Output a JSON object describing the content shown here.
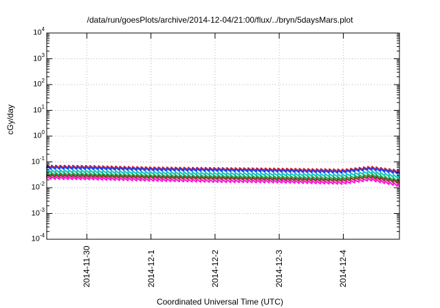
{
  "chart_data": {
    "type": "line",
    "title": "/data/run/goesPlots/archive/2014-12-04/21:00/flux/../bryn/5daysMars.plot",
    "xlabel": "Coordinated Universal Time (UTC)",
    "ylabel": "cGy/day",
    "y_scale": "log",
    "ylim": [
      0.0001,
      10000
    ],
    "xlim": [
      "2014-11-29 09:00",
      "2014-12-04 21:00"
    ],
    "grid": true,
    "x_ticks": [
      "2014-11-30",
      "2014-12-1",
      "2014-12-2",
      "2014-12-3",
      "2014-12-4"
    ],
    "y_ticks": [
      {
        "base": "10",
        "exp": "4"
      },
      {
        "base": "10",
        "exp": "3"
      },
      {
        "base": "10",
        "exp": "2"
      },
      {
        "base": "10",
        "exp": "1"
      },
      {
        "base": "10",
        "exp": "0"
      },
      {
        "base": "10",
        "exp": "-1"
      },
      {
        "base": "10",
        "exp": "-2"
      },
      {
        "base": "10",
        "exp": "-3"
      },
      {
        "base": "10",
        "exp": "-4"
      }
    ],
    "series": [
      {
        "color": "#e8161c",
        "x": [
          "2014-11-29 09:00",
          "2014-11-30 00:00",
          "2014-12-01 00:00",
          "2014-12-02 00:00",
          "2014-12-03 00:00",
          "2014-12-04 00:00",
          "2014-12-04 10:00",
          "2014-12-04 21:00"
        ],
        "values": [
          0.068,
          0.066,
          0.058,
          0.055,
          0.052,
          0.048,
          0.062,
          0.044
        ]
      },
      {
        "color": "#2244ee",
        "x": [
          "2014-11-29 09:00",
          "2014-11-30 00:00",
          "2014-12-01 00:00",
          "2014-12-02 00:00",
          "2014-12-03 00:00",
          "2014-12-04 00:00",
          "2014-12-04 10:00",
          "2014-12-04 21:00"
        ],
        "values": [
          0.062,
          0.06,
          0.053,
          0.05,
          0.047,
          0.043,
          0.057,
          0.039
        ]
      },
      {
        "color": "#18c8c0",
        "x": [
          "2014-11-29 09:00",
          "2014-11-30 00:00",
          "2014-12-01 00:00",
          "2014-12-02 00:00",
          "2014-12-03 00:00",
          "2014-12-04 00:00",
          "2014-12-04 10:00",
          "2014-12-04 21:00"
        ],
        "values": [
          0.045,
          0.044,
          0.039,
          0.036,
          0.034,
          0.031,
          0.042,
          0.027
        ]
      },
      {
        "color": "#1fa84a",
        "x": [
          "2014-11-29 09:00",
          "2014-11-30 00:00",
          "2014-12-01 00:00",
          "2014-12-02 00:00",
          "2014-12-03 00:00",
          "2014-12-04 00:00",
          "2014-12-04 10:00",
          "2014-12-04 21:00"
        ],
        "values": [
          0.035,
          0.034,
          0.03,
          0.028,
          0.026,
          0.024,
          0.032,
          0.02
        ]
      },
      {
        "color": "#8a3a2a",
        "x": [
          "2014-11-29 09:00",
          "2014-11-30 00:00",
          "2014-12-01 00:00",
          "2014-12-02 00:00",
          "2014-12-03 00:00",
          "2014-12-04 00:00",
          "2014-12-04 10:00",
          "2014-12-04 21:00"
        ],
        "values": [
          0.03,
          0.029,
          0.026,
          0.024,
          0.022,
          0.02,
          0.027,
          0.017
        ]
      },
      {
        "color": "#ff18d8",
        "x": [
          "2014-11-29 09:00",
          "2014-11-30 00:00",
          "2014-12-01 00:00",
          "2014-12-02 00:00",
          "2014-12-03 00:00",
          "2014-12-04 00:00",
          "2014-12-04 10:00",
          "2014-12-04 21:00"
        ],
        "values": [
          0.025,
          0.024,
          0.021,
          0.019,
          0.018,
          0.016,
          0.022,
          0.013
        ]
      }
    ]
  }
}
